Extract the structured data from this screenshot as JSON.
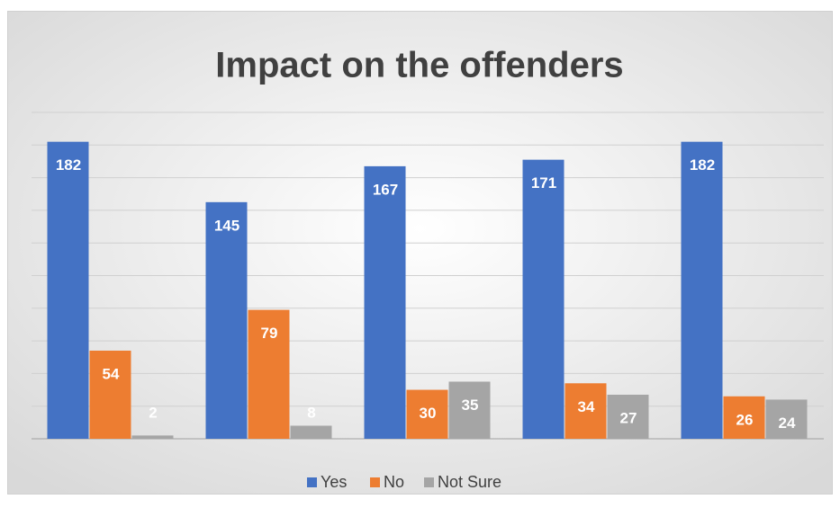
{
  "chart_data": {
    "type": "bar",
    "title": "Impact on the offenders",
    "categories": [
      null,
      null,
      null,
      null,
      null
    ],
    "series": [
      {
        "name": "Yes",
        "color": "#4472c4",
        "values": [
          182,
          145,
          167,
          171,
          182
        ]
      },
      {
        "name": "No",
        "color": "#ed7d31",
        "values": [
          54,
          79,
          30,
          34,
          26
        ]
      },
      {
        "name": "Not Sure",
        "color": "#a5a5a5",
        "values": [
          2,
          8,
          35,
          27,
          24
        ]
      }
    ],
    "ylim": [
      0,
      200
    ],
    "yticks": [
      0,
      20,
      40,
      60,
      80,
      100,
      120,
      140,
      160,
      180,
      200
    ],
    "grid": true,
    "legend": "bottom"
  }
}
